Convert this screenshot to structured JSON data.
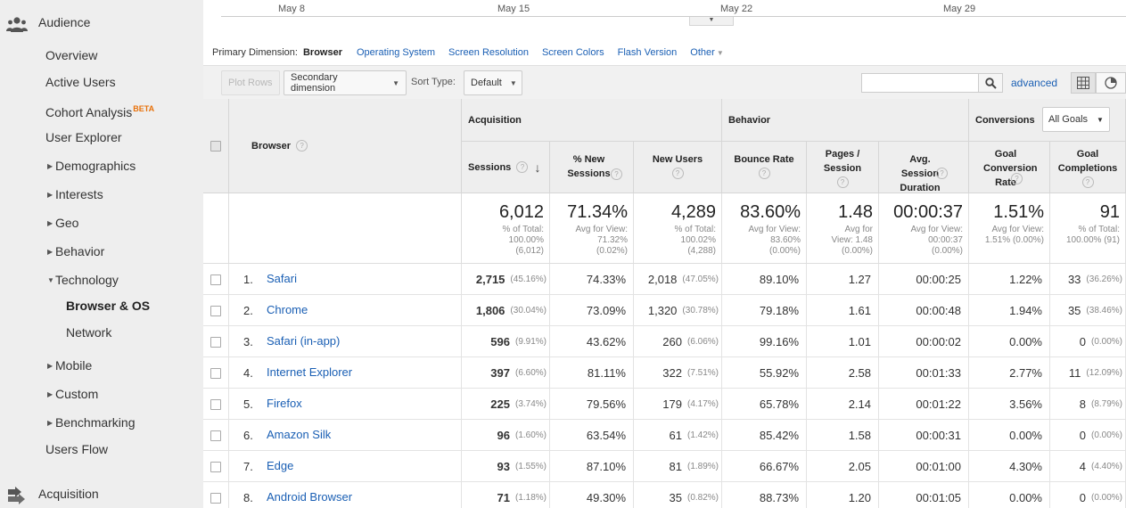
{
  "sidebar": {
    "audience_label": "Audience",
    "items": {
      "overview": "Overview",
      "active_users": "Active Users",
      "cohort": "Cohort Analysis",
      "cohort_badge": "BETA",
      "user_explorer": "User Explorer",
      "demographics": "Demographics",
      "interests": "Interests",
      "geo": "Geo",
      "behavior": "Behavior",
      "technology": "Technology",
      "browser_os": "Browser & OS",
      "network": "Network",
      "mobile": "Mobile",
      "custom": "Custom",
      "benchmarking": "Benchmarking",
      "users_flow": "Users Flow"
    },
    "acquisition_label": "Acquisition"
  },
  "timeline": {
    "ticks": [
      "May 8",
      "May 15",
      "May 22",
      "May 29"
    ]
  },
  "primary_dimension": {
    "label": "Primary Dimension:",
    "active": "Browser",
    "links": [
      "Operating System",
      "Screen Resolution",
      "Screen Colors",
      "Flash Version",
      "Other"
    ]
  },
  "toolbar": {
    "plot_rows": "Plot Rows",
    "secondary_dimension": "Secondary dimension",
    "sort_type_label": "Sort Type:",
    "sort_type_value": "Default",
    "search_placeholder": "",
    "advanced": "advanced"
  },
  "table": {
    "col_browser": "Browser",
    "group_acquisition": "Acquisition",
    "group_behavior": "Behavior",
    "group_conversions": "Conversions",
    "goals_select": "All Goals",
    "headers": {
      "sessions": "Sessions",
      "pct_new_sessions": "% New Sessions",
      "new_users": "New Users",
      "bounce_rate": "Bounce Rate",
      "pages_session": "Pages / Session",
      "avg_duration": "Avg. Session Duration",
      "goal_conv_rate": "Goal Conversion Rate",
      "goal_completions": "Goal Completions"
    },
    "totals": {
      "sessions": "6,012",
      "sessions_sub1": "% of Total:",
      "sessions_sub2": "100.00%",
      "sessions_sub3": "(6,012)",
      "pct_new": "71.34%",
      "pct_new_sub1": "Avg for View:",
      "pct_new_sub2": "71.32%",
      "pct_new_sub3": "(0.02%)",
      "new_users": "4,289",
      "new_users_sub1": "% of Total:",
      "new_users_sub2": "100.02%",
      "new_users_sub3": "(4,288)",
      "bounce": "83.60%",
      "bounce_sub1": "Avg for View:",
      "bounce_sub2": "83.60%",
      "bounce_sub3": "(0.00%)",
      "pages": "1.48",
      "pages_sub1": "Avg for",
      "pages_sub2": "View: 1.48",
      "pages_sub3": "(0.00%)",
      "duration": "00:00:37",
      "duration_sub1": "Avg for View:",
      "duration_sub2": "00:00:37",
      "duration_sub3": "(0.00%)",
      "conv": "1.51%",
      "conv_sub1": "Avg for View:",
      "conv_sub2": "1.51% (0.00%)",
      "completions": "91",
      "completions_sub1": "% of Total:",
      "completions_sub2": "100.00% (91)"
    },
    "rows": [
      {
        "rank": "1.",
        "name": "Safari",
        "sessions": "2,715",
        "sessions_pct": "(45.16%)",
        "pct_new": "74.33%",
        "new_users": "2,018",
        "new_users_pct": "(47.05%)",
        "bounce": "89.10%",
        "pages": "1.27",
        "duration": "00:00:25",
        "conv": "1.22%",
        "completions": "33",
        "completions_pct": "(36.26%)"
      },
      {
        "rank": "2.",
        "name": "Chrome",
        "sessions": "1,806",
        "sessions_pct": "(30.04%)",
        "pct_new": "73.09%",
        "new_users": "1,320",
        "new_users_pct": "(30.78%)",
        "bounce": "79.18%",
        "pages": "1.61",
        "duration": "00:00:48",
        "conv": "1.94%",
        "completions": "35",
        "completions_pct": "(38.46%)"
      },
      {
        "rank": "3.",
        "name": "Safari (in-app)",
        "sessions": "596",
        "sessions_pct": "(9.91%)",
        "pct_new": "43.62%",
        "new_users": "260",
        "new_users_pct": "(6.06%)",
        "bounce": "99.16%",
        "pages": "1.01",
        "duration": "00:00:02",
        "conv": "0.00%",
        "completions": "0",
        "completions_pct": "(0.00%)"
      },
      {
        "rank": "4.",
        "name": "Internet Explorer",
        "sessions": "397",
        "sessions_pct": "(6.60%)",
        "pct_new": "81.11%",
        "new_users": "322",
        "new_users_pct": "(7.51%)",
        "bounce": "55.92%",
        "pages": "2.58",
        "duration": "00:01:33",
        "conv": "2.77%",
        "completions": "11",
        "completions_pct": "(12.09%)"
      },
      {
        "rank": "5.",
        "name": "Firefox",
        "sessions": "225",
        "sessions_pct": "(3.74%)",
        "pct_new": "79.56%",
        "new_users": "179",
        "new_users_pct": "(4.17%)",
        "bounce": "65.78%",
        "pages": "2.14",
        "duration": "00:01:22",
        "conv": "3.56%",
        "completions": "8",
        "completions_pct": "(8.79%)"
      },
      {
        "rank": "6.",
        "name": "Amazon Silk",
        "sessions": "96",
        "sessions_pct": "(1.60%)",
        "pct_new": "63.54%",
        "new_users": "61",
        "new_users_pct": "(1.42%)",
        "bounce": "85.42%",
        "pages": "1.58",
        "duration": "00:00:31",
        "conv": "0.00%",
        "completions": "0",
        "completions_pct": "(0.00%)"
      },
      {
        "rank": "7.",
        "name": "Edge",
        "sessions": "93",
        "sessions_pct": "(1.55%)",
        "pct_new": "87.10%",
        "new_users": "81",
        "new_users_pct": "(1.89%)",
        "bounce": "66.67%",
        "pages": "2.05",
        "duration": "00:01:00",
        "conv": "4.30%",
        "completions": "4",
        "completions_pct": "(4.40%)"
      },
      {
        "rank": "8.",
        "name": "Android Browser",
        "sessions": "71",
        "sessions_pct": "(1.18%)",
        "pct_new": "49.30%",
        "new_users": "35",
        "new_users_pct": "(0.82%)",
        "bounce": "88.73%",
        "pages": "1.20",
        "duration": "00:01:05",
        "conv": "0.00%",
        "completions": "0",
        "completions_pct": "(0.00%)"
      }
    ]
  },
  "colors": {
    "link": "#1a5fb4",
    "sidebar_bg": "#eeeeee",
    "beta": "#e8710a"
  }
}
